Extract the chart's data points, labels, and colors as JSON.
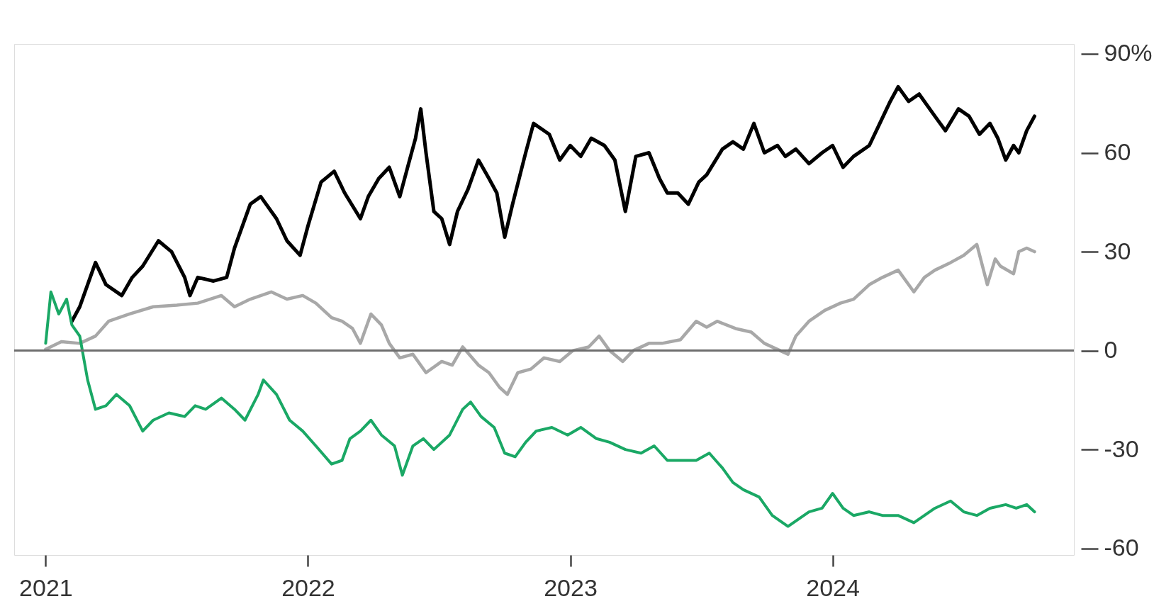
{
  "chart_data": {
    "type": "line",
    "xlim": [
      2020.88,
      2024.92
    ],
    "xticks": [
      2021,
      2022,
      2023,
      2024
    ],
    "ylim": [
      -62,
      93
    ],
    "yticks": [
      {
        "value": 90,
        "label": "90%"
      },
      60,
      30,
      0,
      -30,
      -60
    ],
    "grid": false,
    "legend": false,
    "line_style": "solid",
    "marker": "none",
    "ref_lines": [
      {
        "axis": "y",
        "value": 0,
        "color": "#6e6e6e"
      }
    ],
    "series": [
      {
        "color": "#000000",
        "x": [
          2021.1,
          2021.13,
          2021.19,
          2021.23,
          2021.29,
          2021.33,
          2021.37,
          2021.43,
          2021.48,
          2021.53,
          2021.55,
          2021.58,
          2021.64,
          2021.69,
          2021.72,
          2021.78,
          2021.82,
          2021.88,
          2021.92,
          2021.97,
          2022.0,
          2022.05,
          2022.1,
          2022.14,
          2022.2,
          2022.23,
          2022.27,
          2022.31,
          2022.35,
          2022.38,
          2022.41,
          2022.43,
          2022.45,
          2022.48,
          2022.51,
          2022.54,
          2022.57,
          2022.61,
          2022.65,
          2022.69,
          2022.72,
          2022.75,
          2022.78,
          2022.83,
          2022.86,
          2022.92,
          2022.96,
          2023.0,
          2023.04,
          2023.08,
          2023.13,
          2023.17,
          2023.21,
          2023.25,
          2023.3,
          2023.34,
          2023.37,
          2023.41,
          2023.45,
          2023.49,
          2023.52,
          2023.58,
          2023.62,
          2023.66,
          2023.7,
          2023.74,
          2023.79,
          2023.82,
          2023.86,
          2023.91,
          2023.96,
          2024.0,
          2024.04,
          2024.08,
          2024.14,
          2024.18,
          2024.22,
          2024.25,
          2024.29,
          2024.33,
          2024.39,
          2024.43,
          2024.48,
          2024.52,
          2024.56,
          2024.6,
          2024.63,
          2024.66,
          2024.69,
          2024.71,
          2024.74,
          2024.77
        ],
        "values": [
          8.9,
          13.3,
          26.7,
          20,
          16.7,
          22.2,
          25.6,
          33.3,
          30,
          22.2,
          16.7,
          22.2,
          21.1,
          22.2,
          31.1,
          44.4,
          46.7,
          40,
          33.3,
          28.9,
          37.8,
          51.1,
          54.4,
          47.8,
          40,
          46.7,
          52.2,
          55.6,
          46.7,
          55.6,
          64.4,
          73.3,
          60,
          42.2,
          40,
          32.2,
          42.2,
          48.9,
          57.8,
          52.2,
          47.8,
          34.4,
          44.4,
          60,
          68.9,
          65.6,
          57.8,
          62.2,
          58.9,
          64.4,
          62.2,
          57.8,
          42.2,
          58.9,
          60,
          52.2,
          47.8,
          47.8,
          44.4,
          51.1,
          53.3,
          61.1,
          63.3,
          61.1,
          68.9,
          60,
          62.2,
          58.9,
          61.1,
          56.7,
          60,
          62.2,
          55.6,
          58.9,
          62.2,
          68.9,
          75.6,
          80,
          75.6,
          77.8,
          71.1,
          66.7,
          73.3,
          71.1,
          65.6,
          68.9,
          64.4,
          57.8,
          62.2,
          60,
          66.7,
          71.1
        ]
      },
      {
        "color": "#a8a8a8",
        "x": [
          2021.0,
          2021.06,
          2021.13,
          2021.19,
          2021.24,
          2021.32,
          2021.41,
          2021.5,
          2021.58,
          2021.67,
          2021.72,
          2021.78,
          2021.86,
          2021.92,
          2021.98,
          2022.03,
          2022.09,
          2022.13,
          2022.17,
          2022.2,
          2022.24,
          2022.28,
          2022.31,
          2022.35,
          2022.4,
          2022.45,
          2022.51,
          2022.55,
          2022.59,
          2022.65,
          2022.69,
          2022.73,
          2022.76,
          2022.8,
          2022.85,
          2022.9,
          2022.96,
          2023.01,
          2023.07,
          2023.11,
          2023.15,
          2023.2,
          2023.24,
          2023.3,
          2023.35,
          2023.42,
          2023.48,
          2023.52,
          2023.56,
          2023.63,
          2023.69,
          2023.74,
          2023.8,
          2023.83,
          2023.86,
          2023.91,
          2023.97,
          2024.03,
          2024.08,
          2024.14,
          2024.19,
          2024.25,
          2024.31,
          2024.35,
          2024.39,
          2024.45,
          2024.5,
          2024.55,
          2024.59,
          2024.62,
          2024.64,
          2024.69,
          2024.71,
          2024.74,
          2024.77
        ],
        "values": [
          0.4,
          2.7,
          2.2,
          4.4,
          8.9,
          11.1,
          13.3,
          13.8,
          14.4,
          16.7,
          13.3,
          15.6,
          17.8,
          15.6,
          16.7,
          14.4,
          10,
          8.9,
          6.7,
          2.2,
          11.1,
          7.8,
          2.2,
          -2.2,
          -1.1,
          -6.7,
          -3.3,
          -4.4,
          1.1,
          -4.4,
          -6.7,
          -11.1,
          -13.3,
          -6.7,
          -5.6,
          -2.2,
          -3.3,
          0,
          1.1,
          4.4,
          0,
          -3.3,
          0,
          2.2,
          2.2,
          3.3,
          8.9,
          7.1,
          8.9,
          6.7,
          5.6,
          2.2,
          0,
          -1.1,
          4.4,
          8.9,
          12.2,
          14.4,
          15.6,
          20,
          22.2,
          24.4,
          17.8,
          22.2,
          24.4,
          26.7,
          28.9,
          32.2,
          20,
          27.8,
          25.6,
          23.3,
          30,
          31.1,
          30
        ]
      },
      {
        "color": "#1aa865",
        "x": [
          2021.0,
          2021.02,
          2021.05,
          2021.08,
          2021.1,
          2021.13,
          2021.16,
          2021.19,
          2021.23,
          2021.27,
          2021.32,
          2021.37,
          2021.41,
          2021.47,
          2021.53,
          2021.57,
          2021.61,
          2021.67,
          2021.72,
          2021.76,
          2021.81,
          2021.83,
          2021.88,
          2021.93,
          2021.98,
          2022.03,
          2022.09,
          2022.13,
          2022.16,
          2022.2,
          2022.24,
          2022.28,
          2022.33,
          2022.36,
          2022.4,
          2022.44,
          2022.48,
          2022.54,
          2022.59,
          2022.62,
          2022.66,
          2022.71,
          2022.75,
          2022.79,
          2022.83,
          2022.87,
          2022.93,
          2022.99,
          2023.04,
          2023.1,
          2023.15,
          2023.21,
          2023.27,
          2023.32,
          2023.37,
          2023.42,
          2023.48,
          2023.53,
          2023.58,
          2023.62,
          2023.66,
          2023.72,
          2023.77,
          2023.83,
          2023.87,
          2023.91,
          2023.96,
          2024.0,
          2024.04,
          2024.08,
          2024.14,
          2024.19,
          2024.25,
          2024.31,
          2024.35,
          2024.39,
          2024.45,
          2024.5,
          2024.55,
          2024.6,
          2024.66,
          2024.7,
          2024.74,
          2024.77
        ],
        "values": [
          2.2,
          17.8,
          11.1,
          15.6,
          7.8,
          4.4,
          -8.9,
          -17.8,
          -16.7,
          -13.3,
          -16.7,
          -24.4,
          -21.1,
          -18.9,
          -20,
          -16.7,
          -17.8,
          -14.4,
          -17.8,
          -21.1,
          -13.3,
          -8.9,
          -13.3,
          -21.1,
          -24.4,
          -28.9,
          -34.4,
          -33.3,
          -26.7,
          -24.4,
          -21.1,
          -25.6,
          -28.9,
          -37.8,
          -28.9,
          -26.7,
          -30,
          -25.6,
          -17.8,
          -15.6,
          -20,
          -23.3,
          -31.1,
          -32.2,
          -27.8,
          -24.4,
          -23.3,
          -25.6,
          -23.3,
          -26.7,
          -27.8,
          -30,
          -31.1,
          -28.9,
          -33.3,
          -33.3,
          -33.3,
          -31.1,
          -35.6,
          -40,
          -42.2,
          -44.4,
          -50,
          -53.3,
          -51.1,
          -48.9,
          -47.8,
          -43.3,
          -47.8,
          -50,
          -48.9,
          -50,
          -50,
          -52.2,
          -50,
          -47.8,
          -45.6,
          -48.9,
          -50,
          -47.8,
          -46.7,
          -47.8,
          -46.7,
          -48.9
        ]
      }
    ]
  }
}
